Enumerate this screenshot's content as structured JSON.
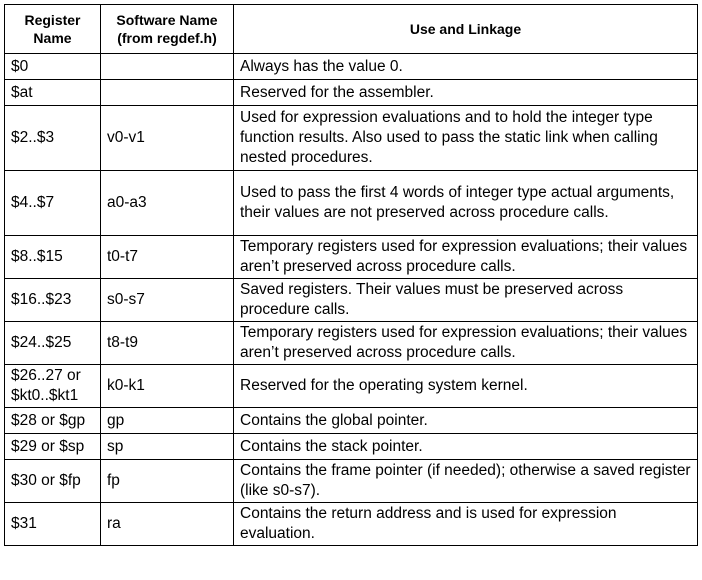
{
  "headers": {
    "register_name": "Register Name",
    "software_name": "Software Name (from regdef.h)",
    "use_linkage": "Use and Linkage"
  },
  "rows": [
    {
      "register": "$0",
      "software": "",
      "use": "Always has the value 0."
    },
    {
      "register": "$at",
      "software": "",
      "use": "Reserved for the assembler."
    },
    {
      "register": "$2..$3",
      "software": "v0-v1",
      "use": "Used for expression evaluations and to hold the integer type function results. Also used to pass the static link when calling nested procedures."
    },
    {
      "register": "$4..$7",
      "software": "a0-a3",
      "use": "Used to pass the first 4 words of integer type actual arguments, their values are not preserved across procedure calls."
    },
    {
      "register": "$8..$15",
      "software": "t0-t7",
      "use": "Temporary registers used for expression evaluations; their values aren’t preserved across procedure calls."
    },
    {
      "register": "$16..$23",
      "software": "s0-s7",
      "use": "Saved registers. Their values must be preserved across procedure calls."
    },
    {
      "register": "$24..$25",
      "software": "t8-t9",
      "use": "Temporary registers used for expression evaluations; their values aren’t preserved across procedure calls."
    },
    {
      "register": "$26..27 or $kt0..$kt1",
      "software": "k0-k1",
      "use": "Reserved for the operating system kernel."
    },
    {
      "register": "$28 or $gp",
      "software": "gp",
      "use": "Contains the global pointer."
    },
    {
      "register": "$29 or $sp",
      "software": "sp",
      "use": "Contains the stack pointer."
    },
    {
      "register": "$30 or $fp",
      "software": "fp",
      "use": "Contains the frame pointer (if needed);  otherwise a saved register (like s0-s7)."
    },
    {
      "register": "$31",
      "software": "ra",
      "use": "Contains the return address and is used for expression evaluation."
    }
  ]
}
